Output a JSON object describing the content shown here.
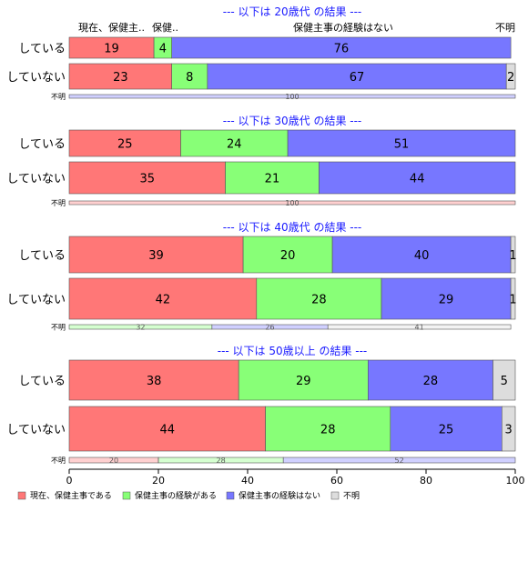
{
  "chart_data": {
    "type": "bar",
    "orientation": "horizontal",
    "stacked": true,
    "xlim": [
      0,
      100
    ],
    "x_ticks": [
      0,
      20,
      40,
      60,
      80,
      100
    ],
    "series": [
      {
        "name": "現在、保健主事である",
        "color": "#FF7777"
      },
      {
        "name": "保健主事の経験がある",
        "color": "#88FF77"
      },
      {
        "name": "保健主事の経験はない",
        "color": "#7777FF"
      },
      {
        "name": "不明",
        "color": "#DDDDDD"
      }
    ],
    "panels": [
      {
        "title": "--- 以下は 20歳代 の結果 ---",
        "header_labels": [
          "現在、保健主..",
          "保健..",
          "保健主事の経験はない",
          "不明"
        ],
        "rows": [
          {
            "label": "している",
            "values": [
              19,
              4,
              76,
              0
            ]
          },
          {
            "label": "していない",
            "values": [
              23,
              8,
              67,
              2
            ]
          },
          {
            "label": "不明",
            "values": [
              0,
              0,
              100,
              0
            ]
          }
        ]
      },
      {
        "title": "--- 以下は 30歳代 の結果 ---",
        "rows": [
          {
            "label": "している",
            "values": [
              25,
              24,
              51,
              0
            ]
          },
          {
            "label": "していない",
            "values": [
              35,
              21,
              44,
              0
            ]
          },
          {
            "label": "不明",
            "values": [
              100,
              0,
              0,
              0
            ]
          }
        ]
      },
      {
        "title": "--- 以下は 40歳代 の結果 ---",
        "rows": [
          {
            "label": "している",
            "values": [
              39,
              20,
              40,
              1
            ]
          },
          {
            "label": "していない",
            "values": [
              42,
              28,
              29,
              1
            ]
          },
          {
            "label": "不明",
            "values": [
              0,
              32,
              26,
              41
            ]
          }
        ]
      },
      {
        "title": "--- 以下は 50歳以上 の結果 ---",
        "rows": [
          {
            "label": "している",
            "values": [
              38,
              29,
              28,
              5
            ]
          },
          {
            "label": "していない",
            "values": [
              44,
              28,
              25,
              3
            ]
          },
          {
            "label": "不明",
            "values": [
              20,
              28,
              52,
              0
            ]
          }
        ]
      }
    ],
    "legend_position": "bottom-left",
    "grid": false
  }
}
